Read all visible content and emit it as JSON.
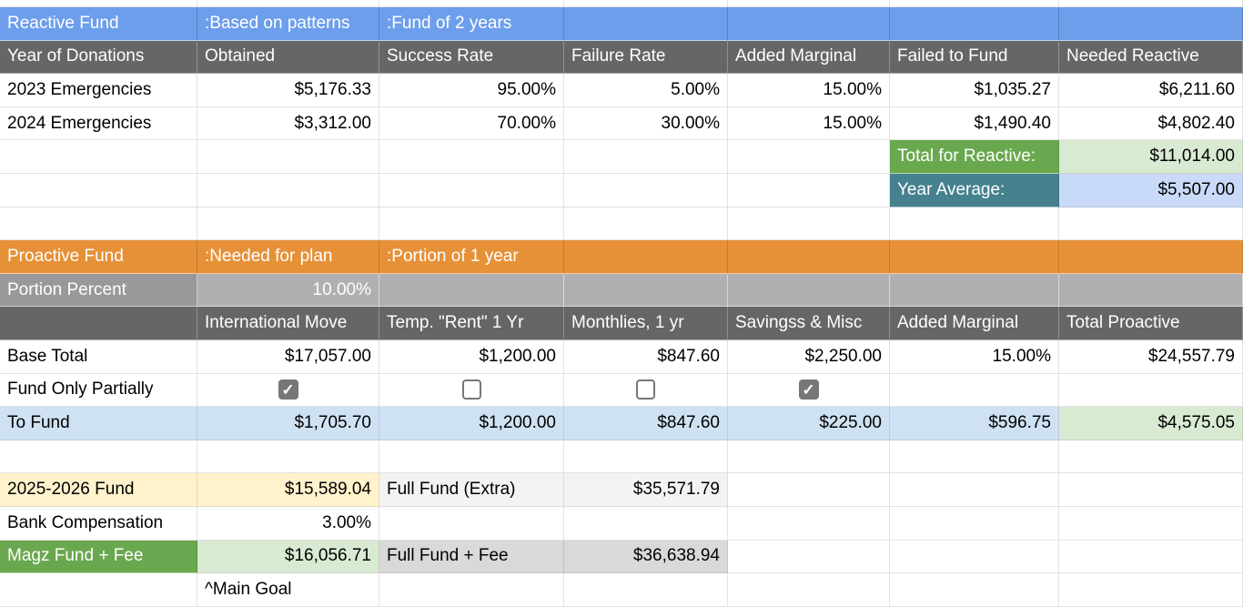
{
  "app": {
    "type": "spreadsheet",
    "checkmark_glyph": "✓"
  },
  "colors": {
    "banner_blue": "#6d9eeb",
    "header_dark_gray": "#666666",
    "banner_orange": "#e69138",
    "row_gray_label": "#999999",
    "row_gray_value": "#b0b0b0",
    "total_green": "#6aa84f",
    "average_teal": "#45818e",
    "tint_green": "#d9ead3",
    "tint_blue": "#cfe2f3",
    "tint_periwinkle": "#c9daf8",
    "tint_yellow": "#fff2cc",
    "tint_gray": "#d9d9d9",
    "tint_gray_light": "#f3f3f3",
    "checkbox_gray": "#777777"
  },
  "grid": {
    "columns": [
      217,
      200,
      203,
      180,
      178,
      186,
      202
    ],
    "sliver_height": 8,
    "row_height": 36.6,
    "rows": [
      {
        "name": "reactive-fund-banner",
        "cells": [
          {
            "t": "Reactive Fund",
            "s": "blue",
            "a": "l"
          },
          {
            "t": ":Based on patterns",
            "s": "blue",
            "a": "l"
          },
          {
            "t": ":Fund of 2 years",
            "s": "blue",
            "a": "l"
          },
          {
            "s": "blue"
          },
          {
            "s": "blue"
          },
          {
            "s": "blue"
          },
          {
            "s": "blue"
          }
        ]
      },
      {
        "name": "reactive-column-headers",
        "cells": [
          {
            "t": "Year of Donations",
            "s": "dark",
            "a": "l"
          },
          {
            "t": "Obtained",
            "s": "dark",
            "a": "l"
          },
          {
            "t": "Success Rate",
            "s": "dark",
            "a": "l"
          },
          {
            "t": "Failure Rate",
            "s": "dark",
            "a": "l"
          },
          {
            "t": "Added Marginal",
            "s": "dark",
            "a": "l"
          },
          {
            "t": "Failed to Fund",
            "s": "dark",
            "a": "l"
          },
          {
            "t": "Needed Reactive",
            "s": "dark",
            "a": "l"
          }
        ]
      },
      {
        "name": "row-2023-emergencies",
        "cells": [
          {
            "t": "2023 Emergencies",
            "a": "l"
          },
          {
            "t": "$5,176.33",
            "a": "r"
          },
          {
            "t": "95.00%",
            "a": "r"
          },
          {
            "t": "5.00%",
            "a": "r"
          },
          {
            "t": "15.00%",
            "a": "r"
          },
          {
            "t": "$1,035.27",
            "a": "r"
          },
          {
            "t": "$6,211.60",
            "a": "r"
          }
        ]
      },
      {
        "name": "row-2024-emergencies",
        "cells": [
          {
            "t": "2024 Emergencies",
            "a": "l"
          },
          {
            "t": "$3,312.00",
            "a": "r"
          },
          {
            "t": "70.00%",
            "a": "r"
          },
          {
            "t": "30.00%",
            "a": "r"
          },
          {
            "t": "15.00%",
            "a": "r"
          },
          {
            "t": "$1,490.40",
            "a": "r"
          },
          {
            "t": "$4,802.40",
            "a": "r"
          }
        ]
      },
      {
        "name": "row-total-for-reactive",
        "cells": [
          {},
          {},
          {},
          {},
          {},
          {
            "t": "Total for Reactive:",
            "s": "green",
            "a": "l"
          },
          {
            "t": "$11,014.00",
            "s": "lgreen",
            "a": "r"
          }
        ]
      },
      {
        "name": "row-year-average",
        "cells": [
          {},
          {},
          {},
          {},
          {},
          {
            "t": "Year Average:",
            "s": "teal",
            "a": "l"
          },
          {
            "t": "$5,507.00",
            "s": "periwinkle",
            "a": "r"
          }
        ]
      },
      {
        "name": "row-spacer-1",
        "cells": [
          {},
          {},
          {},
          {},
          {},
          {},
          {}
        ]
      },
      {
        "name": "proactive-fund-banner",
        "cells": [
          {
            "t": "Proactive Fund",
            "s": "orange",
            "a": "l"
          },
          {
            "t": ":Needed for plan",
            "s": "orange",
            "a": "l"
          },
          {
            "t": ":Portion of 1 year",
            "s": "orange",
            "a": "l"
          },
          {
            "s": "orange"
          },
          {
            "s": "orange"
          },
          {
            "s": "orange"
          },
          {
            "s": "orange"
          }
        ]
      },
      {
        "name": "row-portion-percent",
        "cells": [
          {
            "t": "Portion Percent",
            "s": "gray1",
            "a": "l"
          },
          {
            "t": "10.00%",
            "s": "gray2",
            "a": "r"
          },
          {
            "s": "gray2"
          },
          {
            "s": "gray2"
          },
          {
            "s": "gray2"
          },
          {
            "s": "gray2"
          },
          {
            "s": "gray2"
          }
        ]
      },
      {
        "name": "proactive-column-headers",
        "cells": [
          {
            "s": "dark"
          },
          {
            "t": "International Move",
            "s": "dark",
            "a": "l"
          },
          {
            "t": "Temp. \"Rent\" 1 Yr",
            "s": "dark",
            "a": "l"
          },
          {
            "t": "Monthlies, 1 yr",
            "s": "dark",
            "a": "l"
          },
          {
            "t": "Savingss & Misc",
            "s": "dark",
            "a": "l"
          },
          {
            "t": "Added Marginal",
            "s": "dark",
            "a": "l"
          },
          {
            "t": "Total Proactive",
            "s": "dark",
            "a": "l"
          }
        ]
      },
      {
        "name": "row-base-total",
        "cells": [
          {
            "t": "Base Total",
            "a": "l"
          },
          {
            "t": "$17,057.00",
            "a": "r"
          },
          {
            "t": "$1,200.00",
            "a": "r"
          },
          {
            "t": "$847.60",
            "a": "r"
          },
          {
            "t": "$2,250.00",
            "a": "r"
          },
          {
            "t": "15.00%",
            "a": "r"
          },
          {
            "t": "$24,557.79",
            "a": "r"
          }
        ]
      },
      {
        "name": "row-fund-only-partially",
        "cells": [
          {
            "t": "Fund Only Partially",
            "a": "l"
          },
          {
            "cb": true,
            "checked": true,
            "a": "c"
          },
          {
            "cb": true,
            "checked": false,
            "a": "c"
          },
          {
            "cb": true,
            "checked": false,
            "a": "c"
          },
          {
            "cb": true,
            "checked": true,
            "a": "c"
          },
          {},
          {}
        ]
      },
      {
        "name": "row-to-fund",
        "cells": [
          {
            "t": "To Fund",
            "s": "lblue",
            "a": "l"
          },
          {
            "t": "$1,705.70",
            "s": "lblue",
            "a": "r"
          },
          {
            "t": "$1,200.00",
            "s": "lblue",
            "a": "r"
          },
          {
            "t": "$847.60",
            "s": "lblue",
            "a": "r"
          },
          {
            "t": "$225.00",
            "s": "lblue",
            "a": "r"
          },
          {
            "t": "$596.75",
            "s": "lblue",
            "a": "r"
          },
          {
            "t": "$4,575.05",
            "s": "lgreen",
            "a": "r"
          }
        ]
      },
      {
        "name": "row-spacer-2",
        "cells": [
          {},
          {},
          {},
          {},
          {},
          {},
          {}
        ]
      },
      {
        "name": "row-2025-2026-fund",
        "cells": [
          {
            "t": "2025-2026 Fund",
            "s": "yellow",
            "a": "l"
          },
          {
            "t": "$15,589.04",
            "s": "yellow",
            "a": "r"
          },
          {
            "t": "Full Fund (Extra)",
            "s": "vlgray",
            "a": "l"
          },
          {
            "t": "$35,571.79",
            "s": "vlgray",
            "a": "r"
          },
          {},
          {},
          {}
        ]
      },
      {
        "name": "row-bank-compensation",
        "cells": [
          {
            "t": "Bank Compensation",
            "a": "l"
          },
          {
            "t": "3.00%",
            "a": "r"
          },
          {},
          {},
          {},
          {},
          {}
        ]
      },
      {
        "name": "row-magz-fund-fee",
        "cells": [
          {
            "t": "Magz Fund + Fee",
            "s": "green",
            "a": "l"
          },
          {
            "t": "$16,056.71",
            "s": "lgreen",
            "a": "r"
          },
          {
            "t": "Full Fund + Fee",
            "s": "lgray",
            "a": "l"
          },
          {
            "t": "$36,638.94",
            "s": "lgray",
            "a": "r"
          },
          {},
          {},
          {}
        ]
      },
      {
        "name": "row-main-goal-note",
        "cells": [
          {},
          {
            "t": "^Main Goal",
            "a": "l"
          },
          {},
          {},
          {},
          {},
          {}
        ]
      }
    ]
  }
}
